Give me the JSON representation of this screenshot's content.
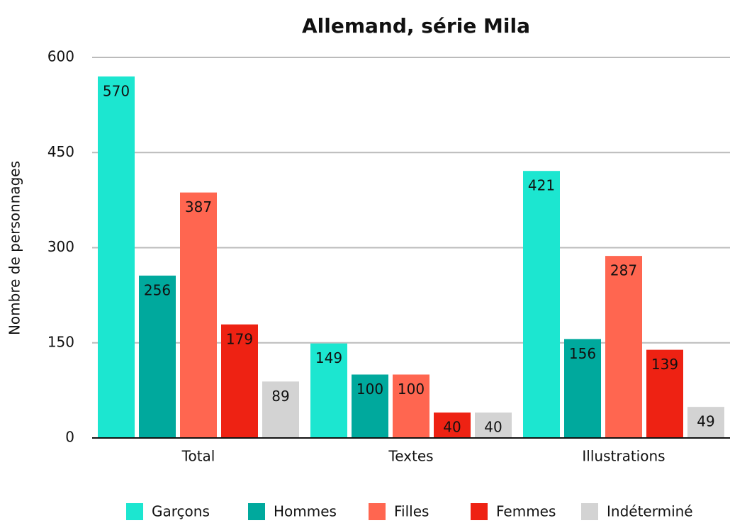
{
  "chart_data": {
    "type": "bar",
    "title": "Allemand, série Mila",
    "y_label": "Nombre de personnages",
    "categories": [
      "Total",
      "Textes",
      "Illustrations"
    ],
    "series": [
      {
        "name": "Garçons",
        "color": "#1ce6d0",
        "values": [
          570,
          149,
          421
        ]
      },
      {
        "name": "Hommes",
        "color": "#00a99d",
        "values": [
          256,
          100,
          156
        ]
      },
      {
        "name": "Filles",
        "color": "#ff6650",
        "values": [
          387,
          100,
          287
        ]
      },
      {
        "name": "Femmes",
        "color": "#ee2213",
        "values": [
          179,
          40,
          139
        ]
      },
      {
        "name": "Indéterminé",
        "color": "#d3d3d3",
        "values": [
          89,
          40,
          49
        ]
      }
    ],
    "ylim": [
      0,
      600
    ],
    "yticks": [
      0,
      150,
      300,
      450,
      600
    ],
    "grid": true,
    "legend": "bottom"
  }
}
